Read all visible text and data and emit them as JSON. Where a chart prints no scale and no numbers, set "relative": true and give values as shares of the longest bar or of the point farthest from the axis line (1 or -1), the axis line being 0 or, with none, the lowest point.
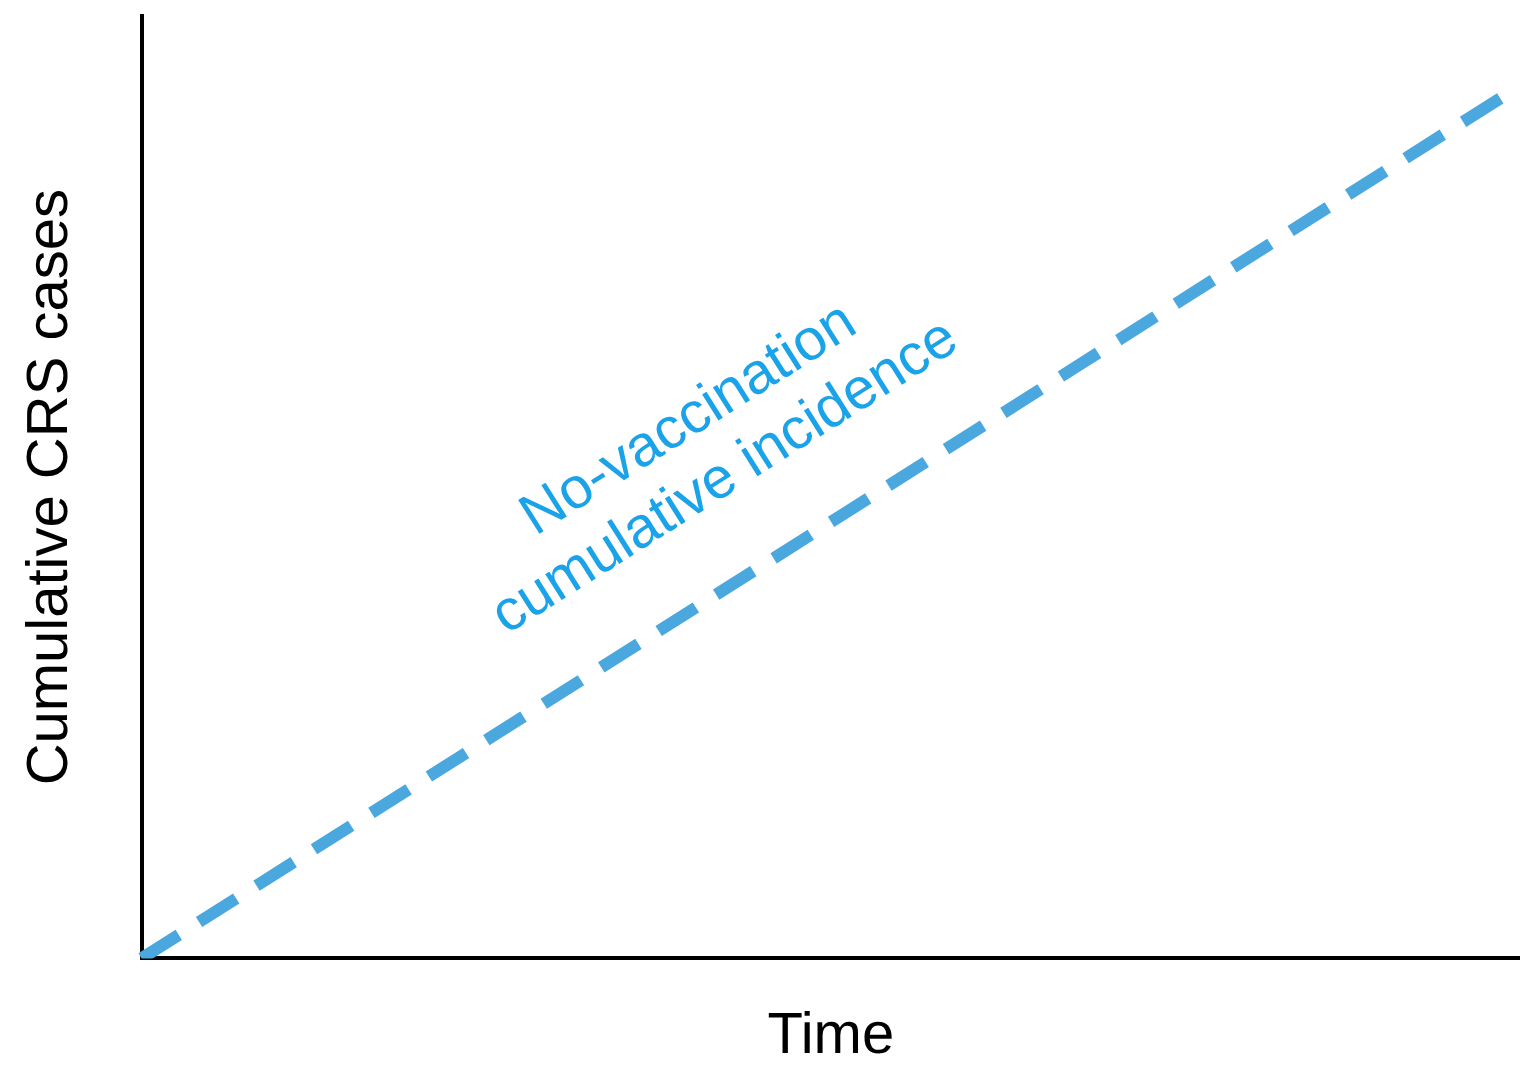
{
  "chart_data": {
    "type": "line",
    "xlabel": "Time",
    "ylabel": "Cumulative CRS cases",
    "relative": true,
    "categories": [
      null,
      null
    ],
    "series": [
      {
        "name": "No-vaccination cumulative incidence",
        "color": "#4aa8de",
        "values": [
          0,
          1
        ],
        "line_style": "dashed"
      }
    ],
    "legend": false,
    "grid": false,
    "marker": "none"
  }
}
